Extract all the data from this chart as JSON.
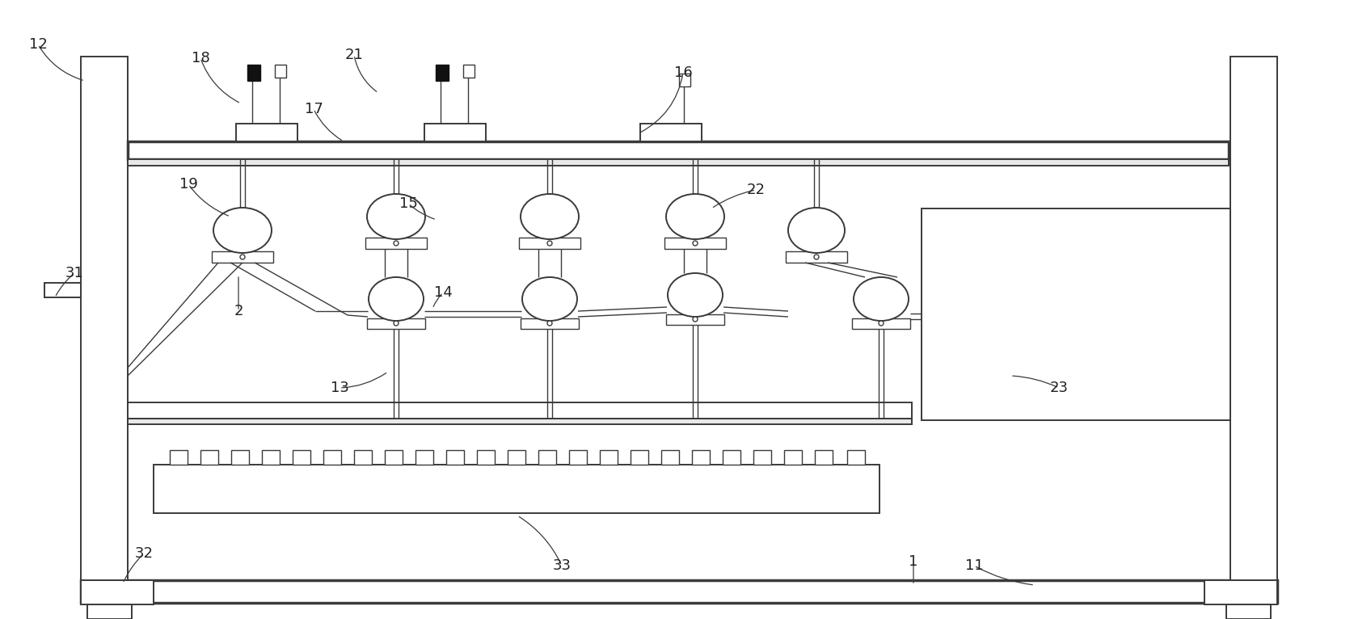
{
  "bg_color": "#ffffff",
  "lc": "#3a3a3a",
  "figsize": [
    16.75,
    7.66
  ],
  "dpi": 100
}
